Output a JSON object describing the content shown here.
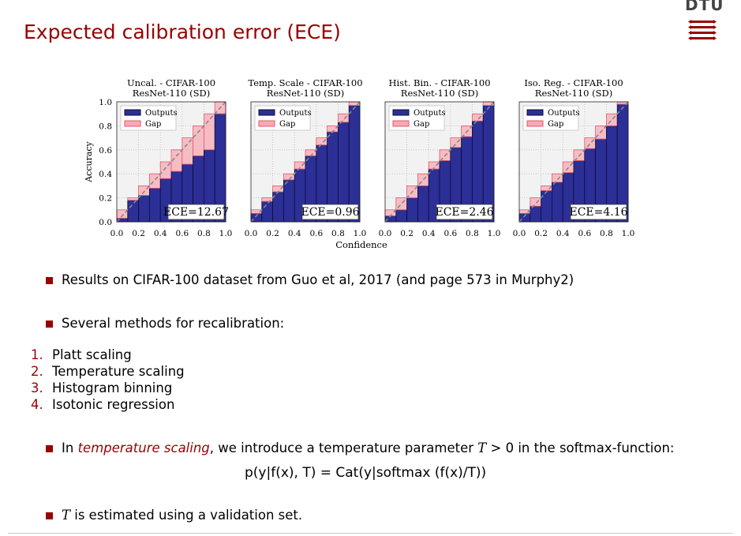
{
  "slide": {
    "title": "Expected calibration error (ECE)",
    "logo_text": "DTU"
  },
  "figure": {
    "shared_xlabel": "Confidence",
    "shared_ylabel": "Accuracy",
    "legend_outputs": "Outputs",
    "legend_gap": "Gap",
    "x_ticks": [
      "0.0",
      "0.2",
      "0.4",
      "0.6",
      "0.8",
      "1.0"
    ],
    "y_ticks": [
      "0.0",
      "0.2",
      "0.4",
      "0.6",
      "0.8",
      "1.0"
    ]
  },
  "chart_data": [
    {
      "type": "bar",
      "title": "Uncal. - CIFAR-100",
      "subtitle": "ResNet-110 (SD)",
      "bins": [
        0.05,
        0.15,
        0.25,
        0.35,
        0.45,
        0.55,
        0.65,
        0.75,
        0.85,
        0.95
      ],
      "outputs": [
        0.03,
        0.18,
        0.22,
        0.28,
        0.36,
        0.42,
        0.48,
        0.55,
        0.6,
        0.9
      ],
      "annotation": "ECE=12.67",
      "xlim": [
        0,
        1
      ],
      "ylim": [
        0,
        1
      ],
      "legend": "top-left",
      "grid": true
    },
    {
      "type": "bar",
      "title": "Temp. Scale - CIFAR-100",
      "subtitle": "ResNet-110 (SD)",
      "bins": [
        0.05,
        0.15,
        0.25,
        0.35,
        0.45,
        0.55,
        0.65,
        0.75,
        0.85,
        0.95
      ],
      "outputs": [
        0.07,
        0.17,
        0.25,
        0.35,
        0.44,
        0.55,
        0.64,
        0.75,
        0.83,
        0.97
      ],
      "annotation": "ECE=0.96",
      "xlim": [
        0,
        1
      ],
      "ylim": [
        0,
        1
      ],
      "legend": "top-left",
      "grid": true
    },
    {
      "type": "bar",
      "title": "Hist. Bin. - CIFAR-100",
      "subtitle": "ResNet-110 (SD)",
      "bins": [
        0.05,
        0.15,
        0.25,
        0.35,
        0.45,
        0.55,
        0.65,
        0.75,
        0.85,
        0.95
      ],
      "outputs": [
        0.05,
        0.1,
        0.2,
        0.3,
        0.44,
        0.51,
        0.62,
        0.71,
        0.84,
        0.97
      ],
      "annotation": "ECE=2.46",
      "xlim": [
        0,
        1
      ],
      "ylim": [
        0,
        1
      ],
      "legend": "top-left",
      "grid": true
    },
    {
      "type": "bar",
      "title": "Iso. Reg. - CIFAR-100",
      "subtitle": "ResNet-110 (SD)",
      "bins": [
        0.05,
        0.15,
        0.25,
        0.35,
        0.45,
        0.55,
        0.65,
        0.75,
        0.85,
        0.95
      ],
      "outputs": [
        0.07,
        0.13,
        0.26,
        0.33,
        0.41,
        0.51,
        0.61,
        0.69,
        0.8,
        0.98
      ],
      "annotation": "ECE=4.16",
      "xlim": [
        0,
        1
      ],
      "ylim": [
        0,
        1
      ],
      "legend": "top-left",
      "grid": true
    }
  ],
  "colors": {
    "accent": "#990000",
    "outputs_fill": "#2b2f96",
    "outputs_edge": "#0b0d3a",
    "gap_fill": "#f7a9b4",
    "gap_edge": "#e25a6e",
    "plot_bg": "#f2f2f2"
  },
  "bullets": {
    "b1": "Results on CIFAR-100 dataset from Guo et al, 2017 (and page 573 in Murphy2)",
    "b2": "Several methods for recalibration:",
    "b3_pre": "In ",
    "b3_em": "temperature scaling",
    "b3_mid": ", we introduce a temperature parameter ",
    "b3_T": "T",
    "b3_gt": " > 0 in the softmax-function:",
    "b4_T": "T",
    "b4_rest": " is estimated using a validation set."
  },
  "enum_items": [
    {
      "num": "1.",
      "label": "Platt scaling"
    },
    {
      "num": "2.",
      "label": "Temperature scaling"
    },
    {
      "num": "3.",
      "label": "Histogram binning"
    },
    {
      "num": "4.",
      "label": "Isotonic regression"
    }
  ],
  "formula": "p(y|f(x), T) = Cat(y|softmax (f(x)/T))"
}
